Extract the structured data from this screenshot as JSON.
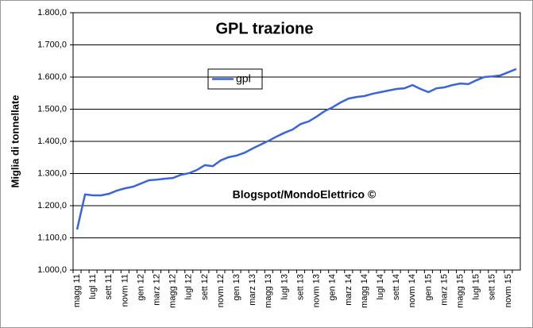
{
  "chart_data": {
    "type": "line",
    "title": "GPL trazione",
    "y_label": "Miglia di tonnellate",
    "annotation": "Blogspot/MondoElettrico ©",
    "categories": [
      "magg 11",
      null,
      "lugl 11",
      null,
      "sett 11",
      null,
      "novm 11",
      null,
      "gen 12",
      null,
      "marz 12",
      null,
      "magg 12",
      null,
      "lugl 12",
      null,
      "sett 12",
      null,
      "novm 12",
      null,
      "gen 13",
      null,
      "marz 13",
      null,
      "magg 13",
      null,
      "lugl 13",
      null,
      "sett 13",
      null,
      "novm 13",
      null,
      "gen 14",
      null,
      "marz 14",
      null,
      "magg 14",
      null,
      "lugl 14",
      null,
      "sett 14",
      null,
      "novm 14",
      null,
      "gen 15",
      null,
      "marz 15",
      null,
      "magg 15",
      null,
      "lugl 15",
      null,
      "sett 15",
      null,
      "novm 15",
      null
    ],
    "series": [
      {
        "name": "gpl",
        "color": "#3b64d8",
        "values": [
          1126,
          1235,
          1232,
          1232,
          1237,
          1247,
          1254,
          1259,
          1269,
          1279,
          1281,
          1284,
          1286,
          1296,
          1301,
          1311,
          1326,
          1323,
          1341,
          1351,
          1356,
          1365,
          1378,
          1390,
          1402,
          1415,
          1427,
          1437,
          1454,
          1462,
          1477,
          1494,
          1506,
          1521,
          1533,
          1538,
          1541,
          1548,
          1553,
          1558,
          1563,
          1565,
          1575,
          1563,
          1553,
          1565,
          1568,
          1575,
          1580,
          1578,
          1590,
          1600,
          1602,
          1605,
          1615,
          1625
        ]
      }
    ],
    "ylim": [
      1000,
      1800
    ],
    "yticks": [
      {
        "value": 1000,
        "label": "1.000,0"
      },
      {
        "value": 1100,
        "label": "1.100,0"
      },
      {
        "value": 1200,
        "label": "1.200,0"
      },
      {
        "value": 1300,
        "label": "1.300,0"
      },
      {
        "value": 1400,
        "label": "1.400,0"
      },
      {
        "value": 1500,
        "label": "1.500,0"
      },
      {
        "value": 1600,
        "label": "1.600,0"
      },
      {
        "value": 1700,
        "label": "1.700,0"
      },
      {
        "value": 1800,
        "label": "1.800,0"
      }
    ],
    "grid": true
  }
}
